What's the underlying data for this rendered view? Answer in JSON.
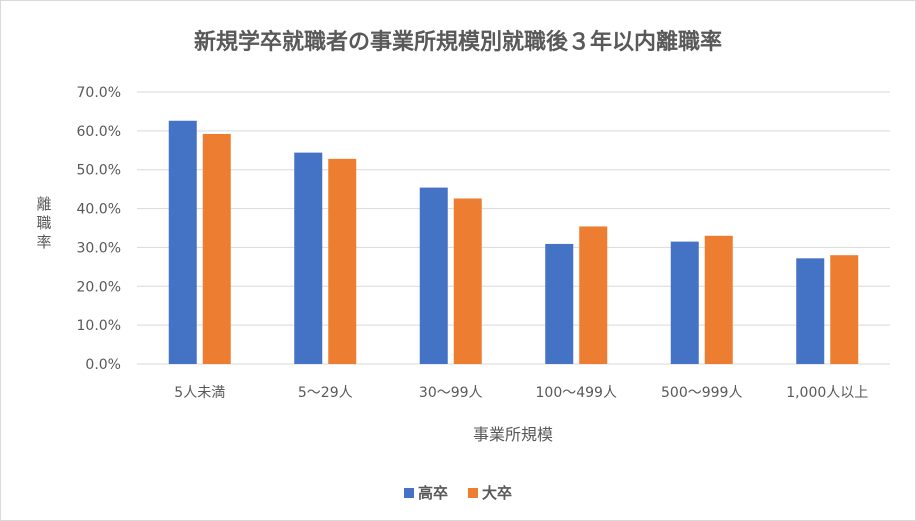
{
  "chart_data": {
    "type": "bar",
    "title": "新規学卒就職者の事業所規模別就職後３年以内離職率",
    "xlabel": "事業所規模",
    "ylabel": "離職率",
    "categories": [
      "5人未満",
      "5～29人",
      "30～99人",
      "100～499人",
      "500～999人",
      "1,000人以上"
    ],
    "series": [
      {
        "name": "高卒",
        "color": "#4472c4",
        "values": [
          62.6,
          54.4,
          45.4,
          30.9,
          31.5,
          27.2
        ]
      },
      {
        "name": "大卒",
        "color": "#ed7d31",
        "values": [
          59.2,
          52.8,
          42.6,
          35.4,
          33.0,
          28.0
        ]
      }
    ],
    "ylim": [
      0,
      70
    ],
    "yticks": [
      "0.0%",
      "10.0%",
      "20.0%",
      "30.0%",
      "40.0%",
      "50.0%",
      "60.0%",
      "70.0%"
    ],
    "grid": true,
    "legend_position": "bottom"
  }
}
